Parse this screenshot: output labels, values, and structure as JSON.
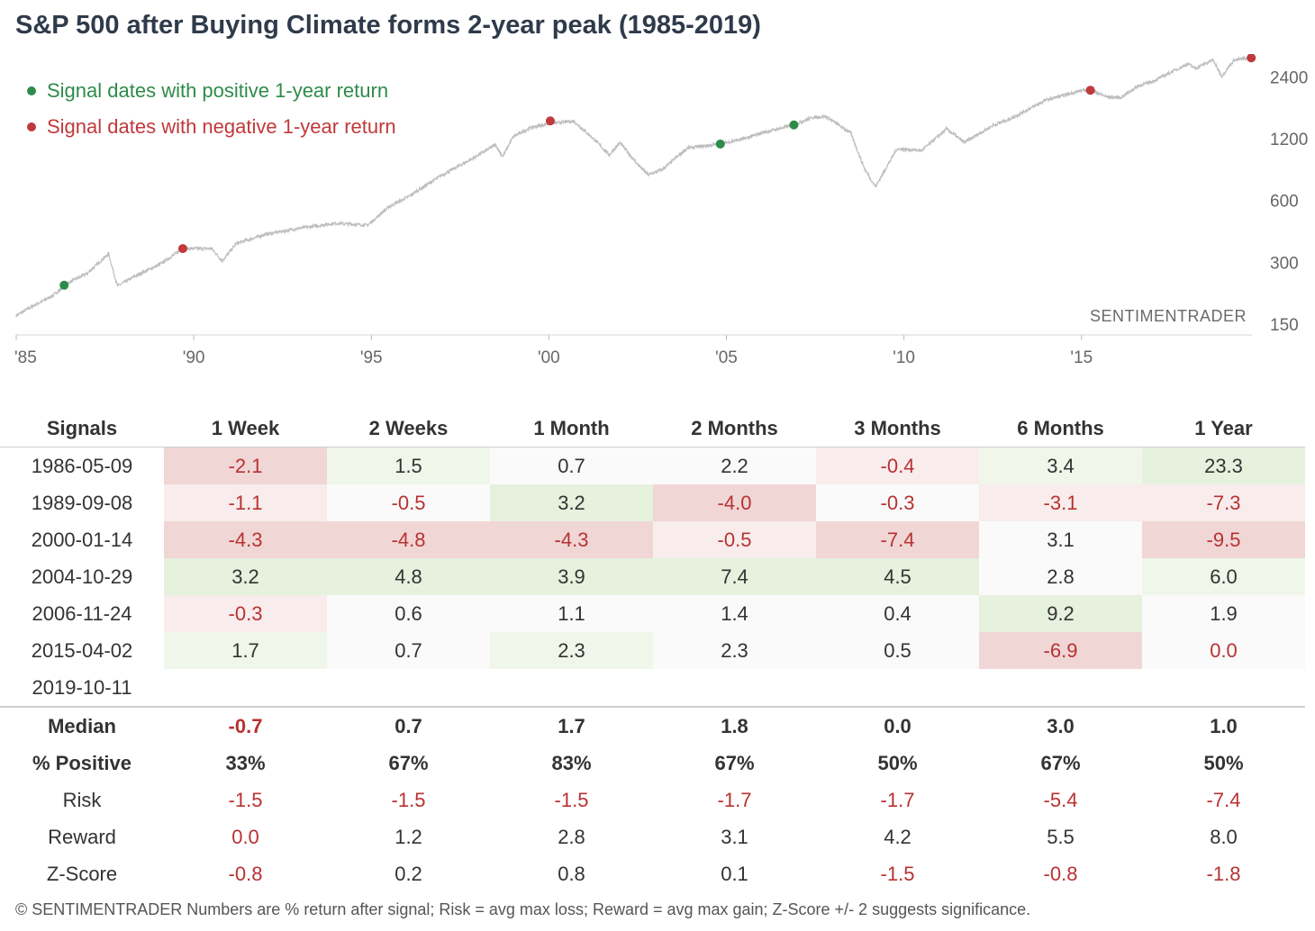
{
  "title": "S&P 500 after Buying Climate forms 2-year peak (1985-2019)",
  "legend": [
    {
      "label": "Signal dates with positive 1-year return",
      "color": "#2e8b4a"
    },
    {
      "label": "Signal dates with negative 1-year return",
      "color": "#c0393b"
    }
  ],
  "watermark": "SENTIMENTRADER",
  "footer": "© SENTIMENTRADER  Numbers are % return after signal; Risk = avg max loss; Reward = avg max gain; Z-Score +/- 2 suggests significance.",
  "colors": {
    "line": "#bdbdbd",
    "positive": "#2e8b4a",
    "negative": "#c0393b",
    "cell_green": "#e6f1de",
    "cell_red": "#f1d6d6"
  },
  "chart_data": {
    "type": "line",
    "title": "S&P 500 after Buying Climate forms 2-year peak (1985-2019)",
    "xlabel": "",
    "ylabel": "",
    "y_scale": "log",
    "x_ticks": [
      "'85",
      "'90",
      "'95",
      "'00",
      "'05",
      "'10",
      "'15"
    ],
    "y_ticks": [
      150,
      300,
      600,
      1200,
      2400
    ],
    "xlim": [
      1985.0,
      2019.8
    ],
    "ylim": [
      150,
      3100
    ],
    "series": [
      {
        "values_by_year": [
          [
            1985.0,
            165
          ],
          [
            1985.5,
            185
          ],
          [
            1986.0,
            205
          ],
          [
            1986.5,
            240
          ],
          [
            1987.0,
            265
          ],
          [
            1987.6,
            330
          ],
          [
            1987.85,
            230
          ],
          [
            1988.5,
            265
          ],
          [
            1989.0,
            290
          ],
          [
            1989.7,
            350
          ],
          [
            1990.5,
            350
          ],
          [
            1990.8,
            305
          ],
          [
            1991.2,
            370
          ],
          [
            1992.0,
            410
          ],
          [
            1993.0,
            440
          ],
          [
            1994.0,
            465
          ],
          [
            1994.9,
            455
          ],
          [
            1995.5,
            560
          ],
          [
            1996.0,
            620
          ],
          [
            1997.0,
            800
          ],
          [
            1997.8,
            950
          ],
          [
            1998.5,
            1120
          ],
          [
            1998.7,
            980
          ],
          [
            1999.0,
            1230
          ],
          [
            1999.5,
            1360
          ],
          [
            2000.0,
            1420
          ],
          [
            2000.7,
            1460
          ],
          [
            2001.3,
            1180
          ],
          [
            2001.7,
            1000
          ],
          [
            2002.0,
            1150
          ],
          [
            2002.5,
            900
          ],
          [
            2002.8,
            800
          ],
          [
            2003.2,
            850
          ],
          [
            2003.9,
            1080
          ],
          [
            2004.8,
            1130
          ],
          [
            2005.5,
            1200
          ],
          [
            2006.0,
            1280
          ],
          [
            2006.9,
            1400
          ],
          [
            2007.4,
            1520
          ],
          [
            2007.8,
            1540
          ],
          [
            2008.5,
            1280
          ],
          [
            2008.9,
            850
          ],
          [
            2009.2,
            700
          ],
          [
            2009.8,
            1070
          ],
          [
            2010.5,
            1050
          ],
          [
            2011.2,
            1340
          ],
          [
            2011.7,
            1150
          ],
          [
            2012.5,
            1390
          ],
          [
            2013.0,
            1500
          ],
          [
            2014.0,
            1850
          ],
          [
            2015.0,
            2060
          ],
          [
            2015.25,
            2070
          ],
          [
            2015.7,
            1920
          ],
          [
            2016.1,
            1900
          ],
          [
            2016.6,
            2170
          ],
          [
            2017.0,
            2280
          ],
          [
            2018.0,
            2780
          ],
          [
            2018.2,
            2640
          ],
          [
            2018.7,
            2900
          ],
          [
            2018.95,
            2420
          ],
          [
            2019.3,
            2900
          ],
          [
            2019.78,
            2970
          ]
        ]
      }
    ],
    "signals": [
      {
        "date": "1986-05-09",
        "year": 1986.35,
        "value": 232,
        "outcome": "positive"
      },
      {
        "date": "1989-09-08",
        "year": 1989.69,
        "value": 350,
        "outcome": "negative"
      },
      {
        "date": "2000-01-14",
        "year": 2000.04,
        "value": 1465,
        "outcome": "negative"
      },
      {
        "date": "2004-10-29",
        "year": 2004.83,
        "value": 1130,
        "outcome": "positive"
      },
      {
        "date": "2006-11-24",
        "year": 2006.9,
        "value": 1400,
        "outcome": "positive"
      },
      {
        "date": "2015-04-02",
        "year": 2015.25,
        "value": 2066,
        "outcome": "negative"
      },
      {
        "date": "2019-10-11",
        "year": 2019.78,
        "value": 2970,
        "outcome": "negative"
      }
    ]
  },
  "table": {
    "corner": "Signals",
    "columns": [
      "1 Week",
      "2 Weeks",
      "1 Month",
      "2 Months",
      "3 Months",
      "6 Months",
      "1 Year"
    ],
    "rows": [
      {
        "date": "1986-05-09",
        "values": [
          "-2.1",
          "1.5",
          "0.7",
          "2.2",
          "-0.4",
          "3.4",
          "23.3"
        ],
        "shade": [
          -2,
          1,
          0,
          0,
          -1,
          1,
          2
        ]
      },
      {
        "date": "1989-09-08",
        "values": [
          "-1.1",
          "-0.5",
          "3.2",
          "-4.0",
          "-0.3",
          "-3.1",
          "-7.3"
        ],
        "shade": [
          -1,
          0,
          2,
          -2,
          0,
          -1,
          -1
        ]
      },
      {
        "date": "2000-01-14",
        "values": [
          "-4.3",
          "-4.8",
          "-4.3",
          "-0.5",
          "-7.4",
          "3.1",
          "-9.5"
        ],
        "shade": [
          -2,
          -2,
          -2,
          -1,
          -2,
          0,
          -2
        ]
      },
      {
        "date": "2004-10-29",
        "values": [
          "3.2",
          "4.8",
          "3.9",
          "7.4",
          "4.5",
          "2.8",
          "6.0"
        ],
        "shade": [
          2,
          2,
          2,
          2,
          2,
          0,
          1
        ]
      },
      {
        "date": "2006-11-24",
        "values": [
          "-0.3",
          "0.6",
          "1.1",
          "1.4",
          "0.4",
          "9.2",
          "1.9"
        ],
        "shade": [
          -1,
          0,
          0,
          0,
          0,
          2,
          0
        ]
      },
      {
        "date": "2015-04-02",
        "values": [
          "1.7",
          "0.7",
          "2.3",
          "2.3",
          "0.5",
          "-6.9",
          "0.0"
        ],
        "shade": [
          1,
          0,
          1,
          0,
          0,
          -2,
          0
        ]
      },
      {
        "date": "2019-10-11",
        "values": [
          "",
          "",
          "",
          "",
          "",
          "",
          ""
        ],
        "shade": [
          0,
          0,
          0,
          0,
          0,
          0,
          0
        ]
      }
    ],
    "stats": [
      {
        "label": "Median",
        "bold": true,
        "values": [
          "-0.7",
          "0.7",
          "1.7",
          "1.8",
          "0.0",
          "3.0",
          "1.0"
        ]
      },
      {
        "label": "% Positive",
        "bold": true,
        "values": [
          "33%",
          "67%",
          "83%",
          "67%",
          "50%",
          "67%",
          "50%"
        ]
      },
      {
        "label": "Risk",
        "bold": false,
        "values": [
          "-1.5",
          "-1.5",
          "-1.5",
          "-1.7",
          "-1.7",
          "-5.4",
          "-7.4"
        ]
      },
      {
        "label": "Reward",
        "bold": false,
        "values": [
          "0.0",
          "1.2",
          "2.8",
          "3.1",
          "4.2",
          "5.5",
          "8.0"
        ]
      },
      {
        "label": "Z-Score",
        "bold": false,
        "values": [
          "-0.8",
          "0.2",
          "0.8",
          "0.1",
          "-1.5",
          "-0.8",
          "-1.8"
        ]
      }
    ]
  }
}
